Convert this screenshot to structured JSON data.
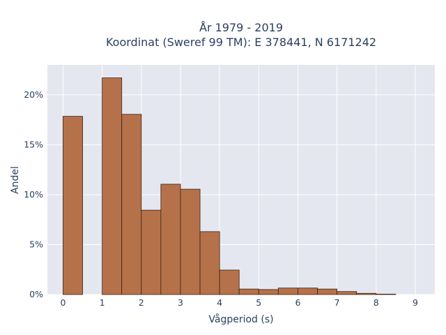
{
  "chart_data": {
    "type": "bar",
    "title_line1": "År 1979 - 2019",
    "title_line2": "Koordinat (Sweref 99 TM): E 378441, N 6171242",
    "xlabel": "Vågperiod (s)",
    "ylabel": "Andel",
    "x_ticks": [
      "0",
      "1",
      "2",
      "3",
      "4",
      "5",
      "6",
      "7",
      "8",
      "9"
    ],
    "y_ticks": [
      "0%",
      "5%",
      "10%",
      "15%",
      "20%"
    ],
    "xlim": [
      -0.4,
      9.5
    ],
    "ylim": [
      0,
      23.0
    ],
    "bin_width": 0.5,
    "bins": [
      {
        "x": 0.0,
        "value": 17.85
      },
      {
        "x": 1.0,
        "value": 21.7
      },
      {
        "x": 1.5,
        "value": 18.05
      },
      {
        "x": 2.0,
        "value": 8.45
      },
      {
        "x": 2.5,
        "value": 11.05
      },
      {
        "x": 3.0,
        "value": 10.55
      },
      {
        "x": 3.5,
        "value": 6.3
      },
      {
        "x": 4.0,
        "value": 2.45
      },
      {
        "x": 4.5,
        "value": 0.55
      },
      {
        "x": 5.0,
        "value": 0.5
      },
      {
        "x": 5.5,
        "value": 0.65
      },
      {
        "x": 6.0,
        "value": 0.65
      },
      {
        "x": 6.5,
        "value": 0.55
      },
      {
        "x": 7.0,
        "value": 0.3
      },
      {
        "x": 7.5,
        "value": 0.12
      },
      {
        "x": 8.0,
        "value": 0.04
      }
    ],
    "grid": true,
    "bar_color": "#b5724a",
    "bar_edge_color": "#3a2010",
    "plot_bg": "#e5e7f0"
  }
}
